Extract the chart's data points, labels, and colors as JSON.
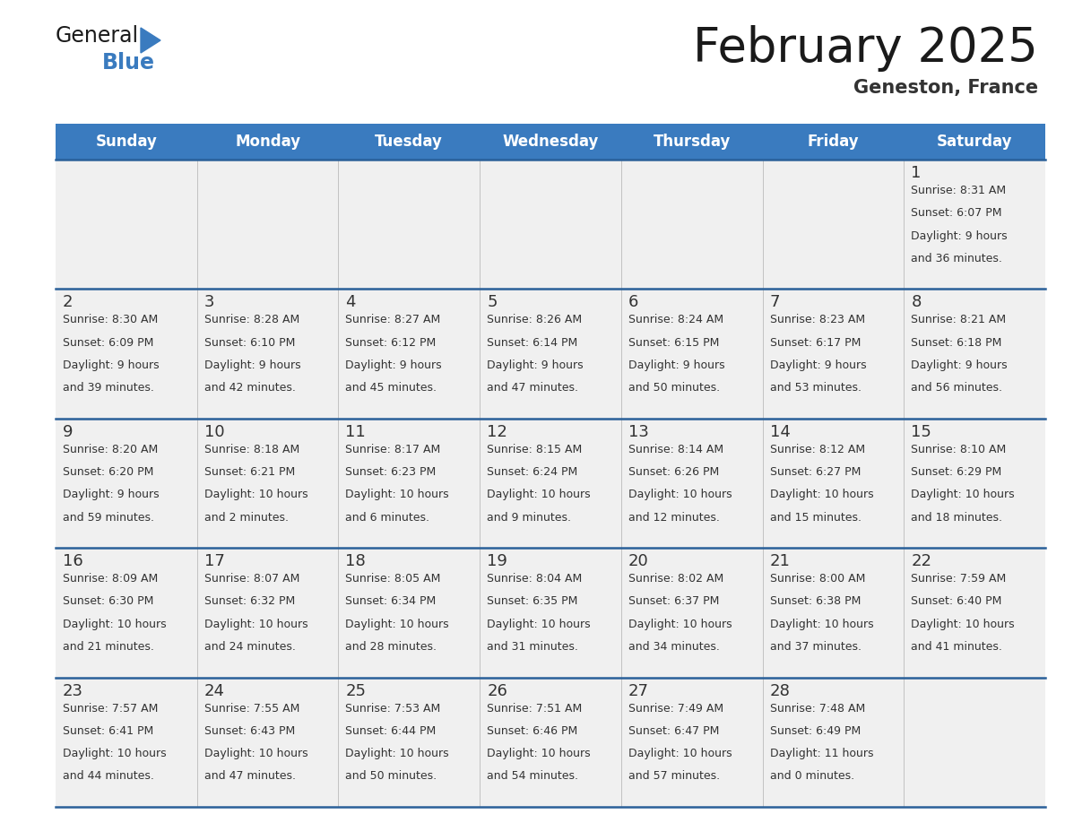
{
  "title": "February 2025",
  "subtitle": "Geneston, France",
  "header_color": "#3a7bbf",
  "header_text_color": "#ffffff",
  "cell_bg_color": "#f0f0f0",
  "cell_border_color": "#2a6099",
  "day_number_color": "#333333",
  "text_color": "#333333",
  "days_of_week": [
    "Sunday",
    "Monday",
    "Tuesday",
    "Wednesday",
    "Thursday",
    "Friday",
    "Saturday"
  ],
  "calendar_data": [
    [
      null,
      null,
      null,
      null,
      null,
      null,
      {
        "day": 1,
        "sunrise": "8:31 AM",
        "sunset": "6:07 PM",
        "daylight": "9 hours and 36 minutes"
      }
    ],
    [
      {
        "day": 2,
        "sunrise": "8:30 AM",
        "sunset": "6:09 PM",
        "daylight": "9 hours and 39 minutes"
      },
      {
        "day": 3,
        "sunrise": "8:28 AM",
        "sunset": "6:10 PM",
        "daylight": "9 hours and 42 minutes"
      },
      {
        "day": 4,
        "sunrise": "8:27 AM",
        "sunset": "6:12 PM",
        "daylight": "9 hours and 45 minutes"
      },
      {
        "day": 5,
        "sunrise": "8:26 AM",
        "sunset": "6:14 PM",
        "daylight": "9 hours and 47 minutes"
      },
      {
        "day": 6,
        "sunrise": "8:24 AM",
        "sunset": "6:15 PM",
        "daylight": "9 hours and 50 minutes"
      },
      {
        "day": 7,
        "sunrise": "8:23 AM",
        "sunset": "6:17 PM",
        "daylight": "9 hours and 53 minutes"
      },
      {
        "day": 8,
        "sunrise": "8:21 AM",
        "sunset": "6:18 PM",
        "daylight": "9 hours and 56 minutes"
      }
    ],
    [
      {
        "day": 9,
        "sunrise": "8:20 AM",
        "sunset": "6:20 PM",
        "daylight": "9 hours and 59 minutes"
      },
      {
        "day": 10,
        "sunrise": "8:18 AM",
        "sunset": "6:21 PM",
        "daylight": "10 hours and 2 minutes"
      },
      {
        "day": 11,
        "sunrise": "8:17 AM",
        "sunset": "6:23 PM",
        "daylight": "10 hours and 6 minutes"
      },
      {
        "day": 12,
        "sunrise": "8:15 AM",
        "sunset": "6:24 PM",
        "daylight": "10 hours and 9 minutes"
      },
      {
        "day": 13,
        "sunrise": "8:14 AM",
        "sunset": "6:26 PM",
        "daylight": "10 hours and 12 minutes"
      },
      {
        "day": 14,
        "sunrise": "8:12 AM",
        "sunset": "6:27 PM",
        "daylight": "10 hours and 15 minutes"
      },
      {
        "day": 15,
        "sunrise": "8:10 AM",
        "sunset": "6:29 PM",
        "daylight": "10 hours and 18 minutes"
      }
    ],
    [
      {
        "day": 16,
        "sunrise": "8:09 AM",
        "sunset": "6:30 PM",
        "daylight": "10 hours and 21 minutes"
      },
      {
        "day": 17,
        "sunrise": "8:07 AM",
        "sunset": "6:32 PM",
        "daylight": "10 hours and 24 minutes"
      },
      {
        "day": 18,
        "sunrise": "8:05 AM",
        "sunset": "6:34 PM",
        "daylight": "10 hours and 28 minutes"
      },
      {
        "day": 19,
        "sunrise": "8:04 AM",
        "sunset": "6:35 PM",
        "daylight": "10 hours and 31 minutes"
      },
      {
        "day": 20,
        "sunrise": "8:02 AM",
        "sunset": "6:37 PM",
        "daylight": "10 hours and 34 minutes"
      },
      {
        "day": 21,
        "sunrise": "8:00 AM",
        "sunset": "6:38 PM",
        "daylight": "10 hours and 37 minutes"
      },
      {
        "day": 22,
        "sunrise": "7:59 AM",
        "sunset": "6:40 PM",
        "daylight": "10 hours and 41 minutes"
      }
    ],
    [
      {
        "day": 23,
        "sunrise": "7:57 AM",
        "sunset": "6:41 PM",
        "daylight": "10 hours and 44 minutes"
      },
      {
        "day": 24,
        "sunrise": "7:55 AM",
        "sunset": "6:43 PM",
        "daylight": "10 hours and 47 minutes"
      },
      {
        "day": 25,
        "sunrise": "7:53 AM",
        "sunset": "6:44 PM",
        "daylight": "10 hours and 50 minutes"
      },
      {
        "day": 26,
        "sunrise": "7:51 AM",
        "sunset": "6:46 PM",
        "daylight": "10 hours and 54 minutes"
      },
      {
        "day": 27,
        "sunrise": "7:49 AM",
        "sunset": "6:47 PM",
        "daylight": "10 hours and 57 minutes"
      },
      {
        "day": 28,
        "sunrise": "7:48 AM",
        "sunset": "6:49 PM",
        "daylight": "11 hours and 0 minutes"
      },
      null
    ]
  ],
  "logo_text_general": "General",
  "logo_text_blue": "Blue",
  "logo_triangle_color": "#3a7bbf",
  "title_fontsize": 38,
  "subtitle_fontsize": 15,
  "header_fontsize": 12,
  "day_number_fontsize": 13,
  "cell_text_fontsize": 9
}
